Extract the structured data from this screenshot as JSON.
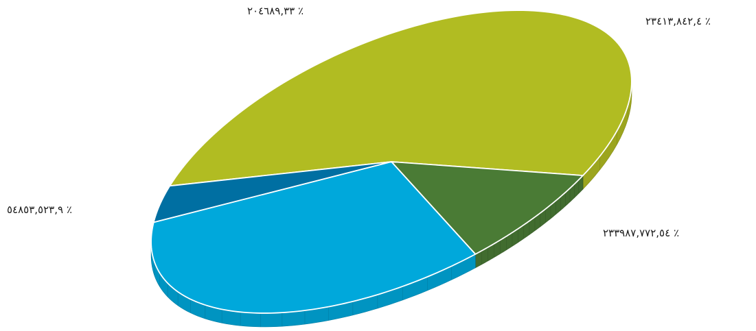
{
  "chart_data": {
    "type": "pie",
    "title": "",
    "style": "3d-tilted",
    "slices": [
      {
        "label": "٢٣٣٩٨٧,٧٧٢,٥٤ ٪",
        "value": 54,
        "color": "#b1bc22"
      },
      {
        "label": "٥٤٨٥٣,٥٢٣,٩ ٪",
        "value": 9,
        "color": "#4a7b35"
      },
      {
        "label": "٢٠٤٦٨٩,٣٣ ٪",
        "value": 33,
        "color": "#00a8db"
      },
      {
        "label": "٢٣٤١٣,٨٤٢,٤ ٪",
        "value": 4,
        "color": "#006fa2"
      }
    ]
  }
}
